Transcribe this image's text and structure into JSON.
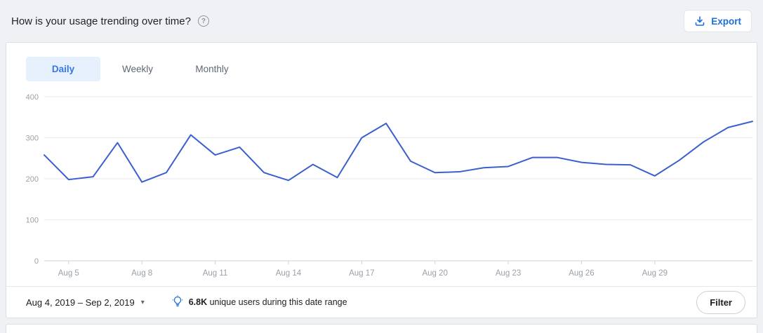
{
  "header": {
    "title": "How is your usage trending over time?",
    "export_label": "Export"
  },
  "icons": {
    "help_glyph": "?",
    "caret_down_glyph": "▾"
  },
  "tabs": [
    {
      "label": "Daily",
      "active": true
    },
    {
      "label": "Weekly",
      "active": false
    },
    {
      "label": "Monthly",
      "active": false
    }
  ],
  "footer": {
    "date_range": "Aug 4, 2019 – Sep 2, 2019",
    "insight_value": "6.8K",
    "insight_text": "unique users during this date range",
    "filter_label": "Filter"
  },
  "colors": {
    "line": "#3b5fce",
    "accent": "#1b6fdb",
    "active_tab_bg": "#e7f0fd",
    "active_tab_text": "#3578e5"
  },
  "chart_data": {
    "type": "line",
    "title": "",
    "xlabel": "",
    "ylabel": "",
    "x": [
      "Aug 4",
      "Aug 5",
      "Aug 6",
      "Aug 7",
      "Aug 8",
      "Aug 9",
      "Aug 10",
      "Aug 11",
      "Aug 12",
      "Aug 13",
      "Aug 14",
      "Aug 15",
      "Aug 16",
      "Aug 17",
      "Aug 18",
      "Aug 19",
      "Aug 20",
      "Aug 21",
      "Aug 22",
      "Aug 23",
      "Aug 24",
      "Aug 25",
      "Aug 26",
      "Aug 27",
      "Aug 28",
      "Aug 29",
      "Aug 30",
      "Aug 31",
      "Sep 1",
      "Sep 2"
    ],
    "values": [
      258,
      198,
      205,
      288,
      192,
      215,
      307,
      258,
      277,
      215,
      196,
      235,
      203,
      300,
      335,
      243,
      215,
      217,
      227,
      230,
      252,
      252,
      240,
      235,
      234,
      207,
      245,
      290,
      325,
      340
    ],
    "x_tick_indices": [
      1,
      4,
      7,
      10,
      13,
      16,
      19,
      22,
      25
    ],
    "yticks": [
      0,
      100,
      200,
      300,
      400
    ],
    "ylim": [
      0,
      400
    ],
    "grid": true,
    "legend": "none",
    "line_color": "#3b5fce"
  }
}
